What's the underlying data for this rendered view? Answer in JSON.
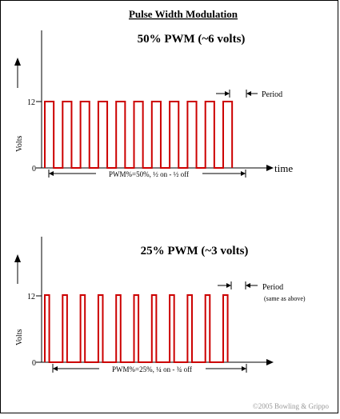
{
  "title": "Pulse Width Modulation",
  "copyright": "©2005 Bowling & Grippo",
  "panels": [
    {
      "heading": "50% PWM (~6 volts)",
      "ylabel": "Volts",
      "xlabel": "time",
      "tick_top": "12",
      "tick_bottom": "0",
      "period_label": "Period",
      "period_note": "",
      "span_label": "PWM%=50%, ½ on - ½ off",
      "duty": 0.5,
      "cycles": 11
    },
    {
      "heading": "25% PWM (~3 volts)",
      "ylabel": "Volts",
      "xlabel": "",
      "tick_top": "12",
      "tick_bottom": "0",
      "period_label": "Period",
      "period_note": "(same as above)",
      "span_label": "PWM%=25%, ¼ on - ¾ off",
      "duty": 0.25,
      "cycles": 11
    }
  ],
  "colors": {
    "wave": "#cc0000",
    "border": "#000000"
  }
}
